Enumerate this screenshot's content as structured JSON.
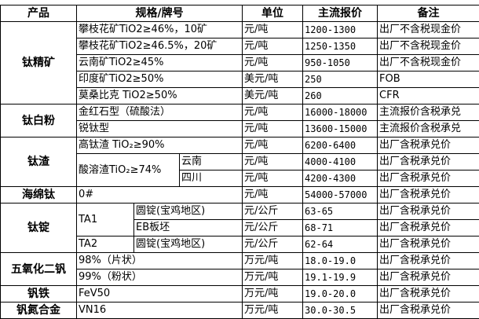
{
  "header": {
    "product": "产品",
    "spec": "规格/牌号",
    "unit": "单位",
    "price": "主流报价",
    "note": "备注"
  },
  "groups": {
    "titanium_concentrate": {
      "name": "钛精矿",
      "rows": [
        {
          "spec": "攀枝花矿TiO2≥46%，10矿",
          "unit": "元/吨",
          "price": "1200-1300",
          "note": "出厂不含税现金价"
        },
        {
          "spec": "攀枝花矿TiO2≥46.5%，20矿",
          "unit": "元/吨",
          "price": "1250-1350",
          "note": "出厂不含税现金价"
        },
        {
          "spec": "云南矿TiO2≥45%",
          "unit": "元/吨",
          "price": "950-1050",
          "note": "出厂不含税现金价"
        },
        {
          "spec": "印度矿TiO2≥50%",
          "unit": "美元/吨",
          "price": "250",
          "note": "FOB"
        },
        {
          "spec": "莫桑比克 TiO2≥50%",
          "unit": "美元/吨",
          "price": "260",
          "note": "CFR"
        }
      ]
    },
    "titanium_dioxide": {
      "name": "钛白粉",
      "rows": [
        {
          "spec": "金红石型（硫酸法）",
          "unit": "元/吨",
          "price": "16000-18000",
          "note": "主流报价含税承兑"
        },
        {
          "spec": "锐钛型",
          "unit": "元/吨",
          "price": "13600-15000",
          "note": "主流报价含税承兑"
        }
      ]
    },
    "titanium_slag": {
      "name": "钛渣",
      "rows": [
        {
          "spec": "高钛渣 TiO₂≥90%",
          "unit": "元/吨",
          "price": "6200-6400",
          "note": "出厂含税承兑价"
        },
        {
          "spec": "酸溶渣TiO₂≥74%",
          "sub": "云南",
          "unit": "元/吨",
          "price": "4000-4100",
          "note": "出厂含税承兑价"
        },
        {
          "sub": "四川",
          "unit": "元/吨",
          "price": "4200-4300",
          "note": "出厂含税承兑价"
        }
      ]
    },
    "titanium_sponge": {
      "name": "海绵钛",
      "rows": [
        {
          "spec": "0#",
          "unit": "元/吨",
          "price": "54000-57000",
          "note": "出厂含税承兑价"
        }
      ]
    },
    "titanium_ingot": {
      "name": "钛锭",
      "rows": [
        {
          "grade": "TA1",
          "spec": "圆锭(宝鸡地区)",
          "unit": "元/公斤",
          "price": "63-65",
          "note": "出厂含税承兑价"
        },
        {
          "spec": "EB板坯",
          "unit": "元/公斤",
          "price": "68-71",
          "note": "出厂含税承兑价"
        },
        {
          "grade": "TA2",
          "spec": "圆锭(宝鸡地区)",
          "unit": "元/公斤",
          "price": "62-64",
          "note": "出厂含税承兑价"
        }
      ]
    },
    "vanadium_pentoxide": {
      "name": "五氧化二钒",
      "rows": [
        {
          "spec": "98%（片状）",
          "unit": "万元/吨",
          "price": "18.0-19.0",
          "note": "出厂含税承兑价"
        },
        {
          "spec": "99%（粉状）",
          "unit": "万元/吨",
          "price": "19.1-19.9",
          "note": "出厂含税承兑价"
        }
      ]
    },
    "ferrovanadium": {
      "name": "钒铁",
      "rows": [
        {
          "spec": "FeV50",
          "unit": "万元/吨",
          "price": "19.0-20.0",
          "note": "出厂含税承兑价"
        }
      ]
    },
    "vanadium_nitrogen": {
      "name": "钒氮合金",
      "rows": [
        {
          "spec": "VN16",
          "unit": "万元/吨",
          "price": "30.0-30.5",
          "note": "出厂含税承兑价"
        }
      ]
    }
  }
}
